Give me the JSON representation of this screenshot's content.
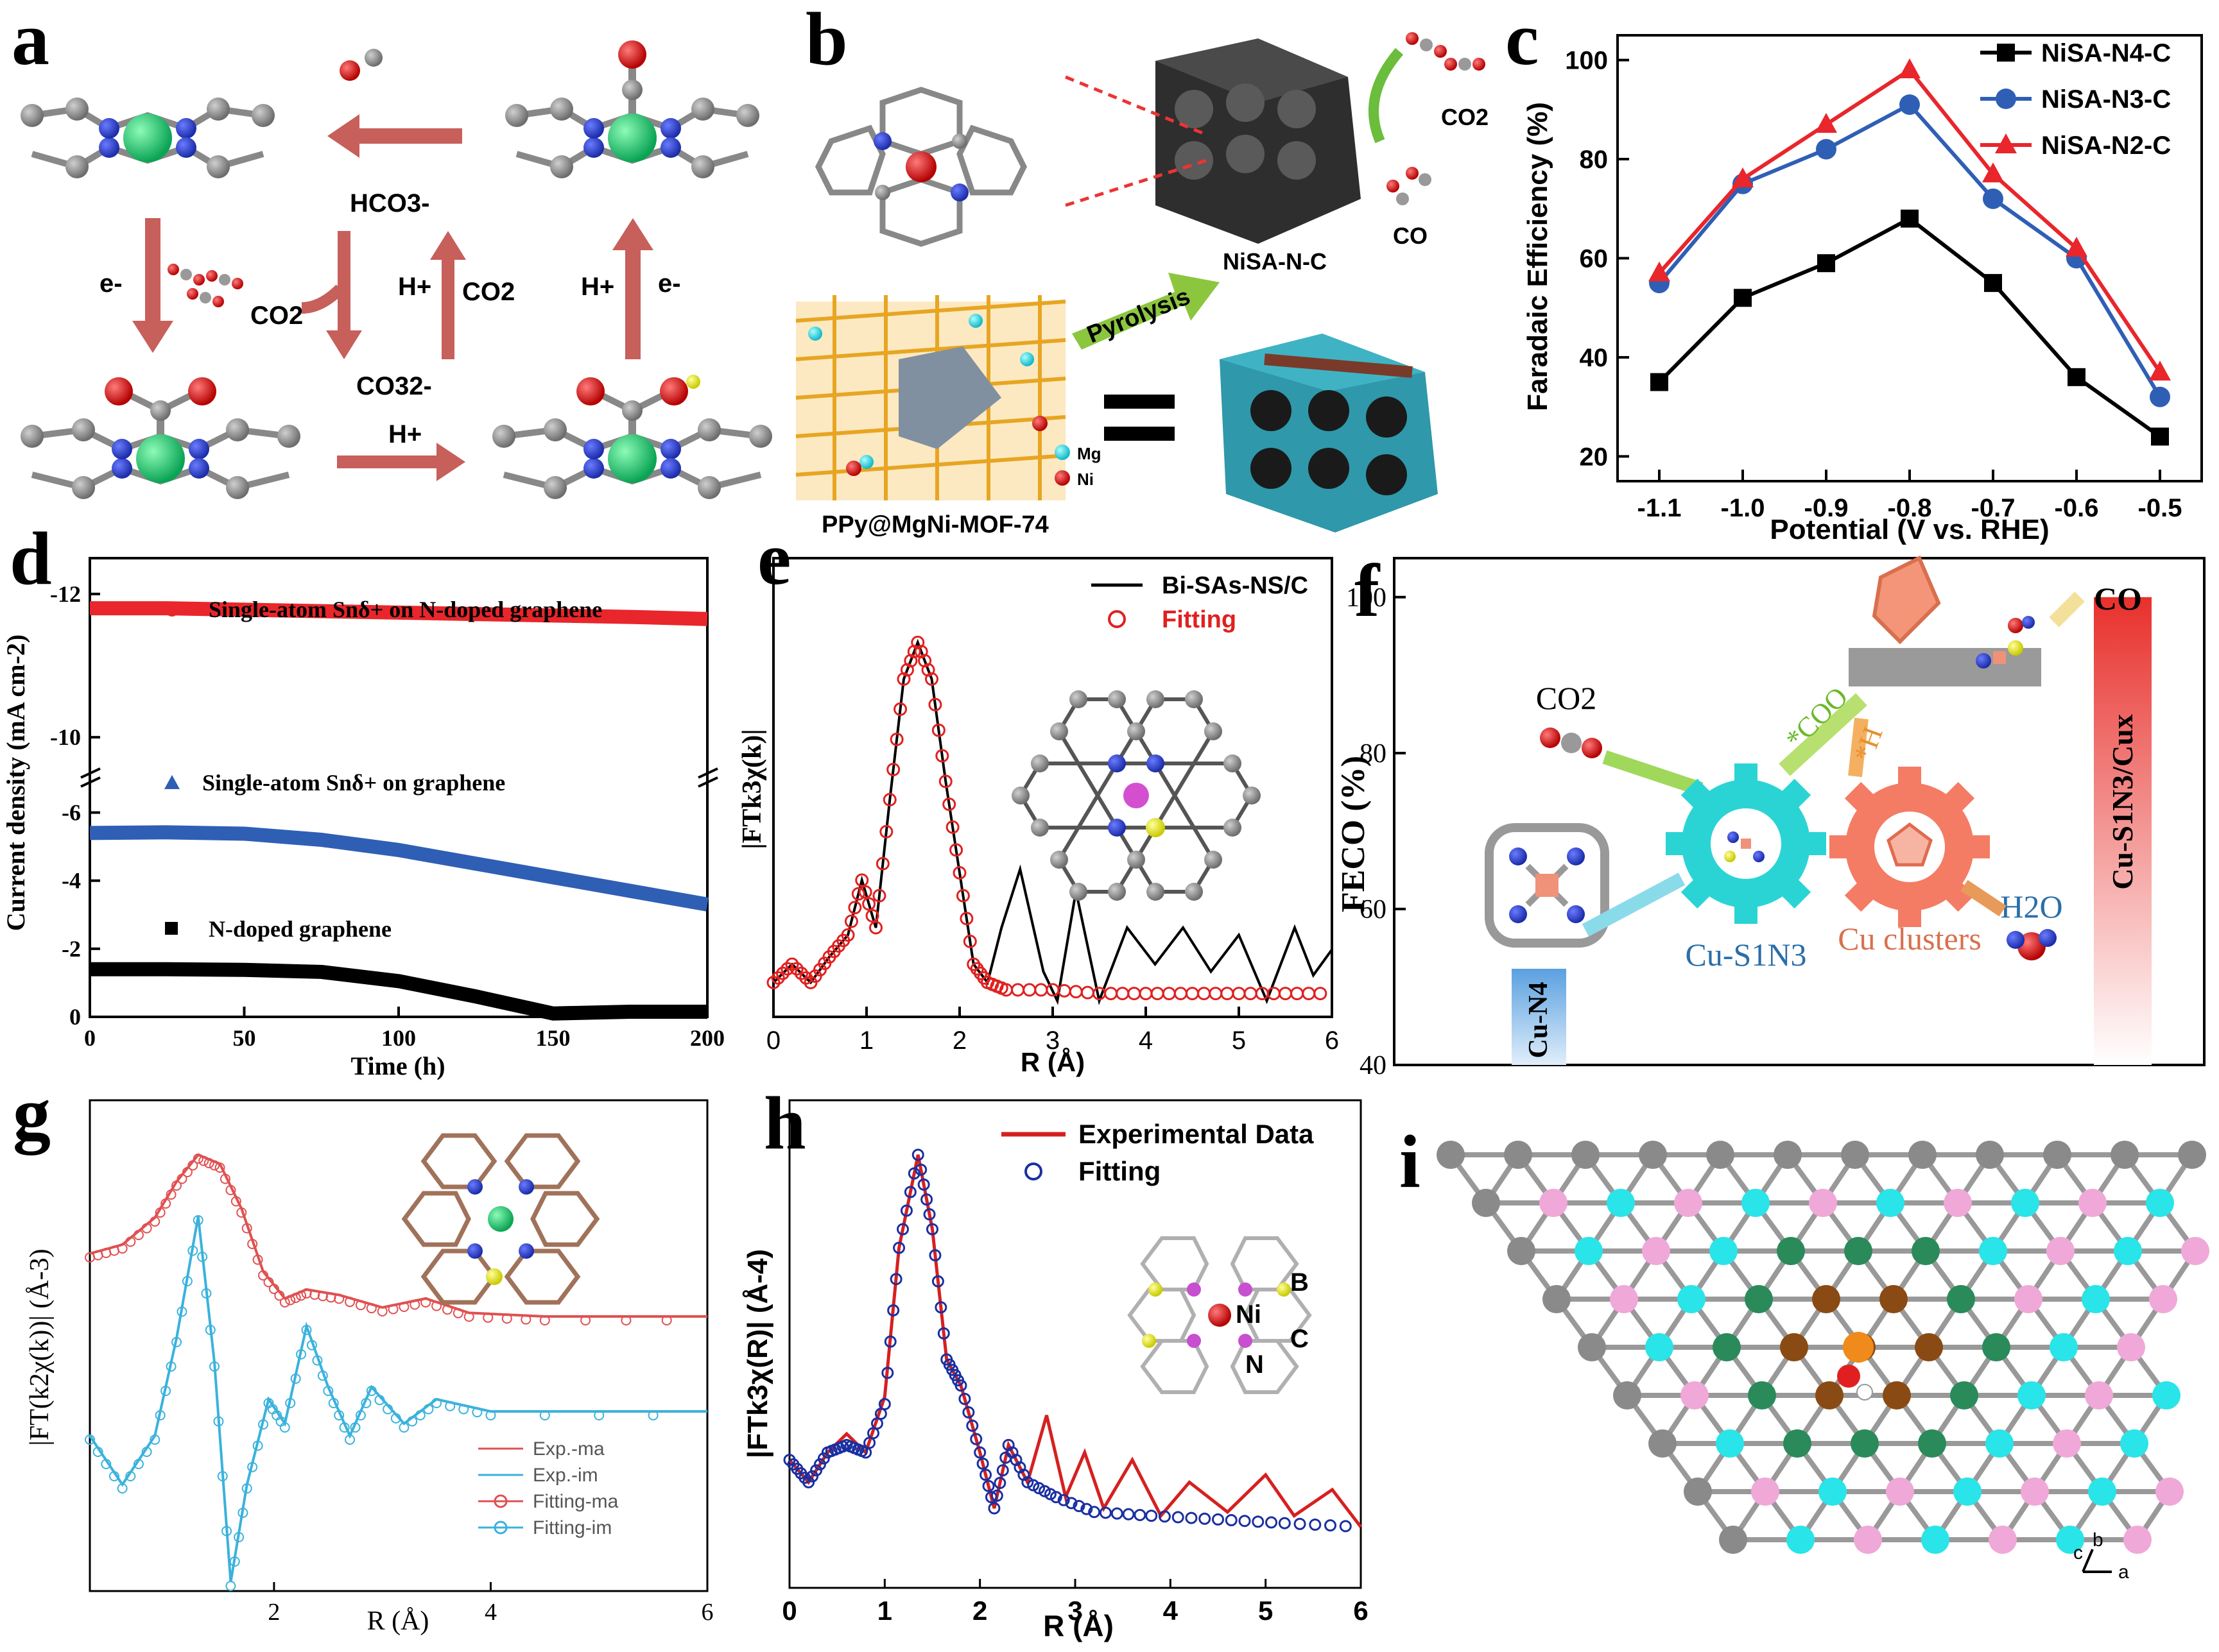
{
  "panel_letters": {
    "a": "a",
    "b": "b",
    "c": "c",
    "d": "d",
    "e": "e",
    "f": "f",
    "g": "g",
    "h": "h",
    "i": "i"
  },
  "colors": {
    "arrow": "#c75f5a",
    "series_black": "#000000",
    "series_blue": "#2f5fb5",
    "series_red": "#e8262b",
    "fit_red": "#e02020",
    "cyan": "#29b7d0",
    "ni_green": "#1fce6d",
    "carbon_gray": "#8a8a8a",
    "nitrogen_blue": "#2040d8"
  },
  "panel_a": {
    "label_hco3": "HCO3-",
    "label_co2_left": "CO2",
    "label_co3": "CO32-",
    "label_e_left": "e-",
    "label_hplus_mid": "H+",
    "label_co2_mid": "CO2",
    "label_hplus_right": "H+",
    "label_e_right": "e-",
    "label_hplus_bottom": "H+"
  },
  "panel_b": {
    "product_co2": "CO2",
    "product_co": "CO",
    "catalyst": "NiSA-N-C",
    "step": "Pyrolysis",
    "precursor": "PPy@MgNi-MOF-74",
    "legend_mg": "Mg",
    "legend_ni": "Ni"
  },
  "chart_data": [
    {
      "id": "c",
      "type": "line",
      "xlabel": "Potential (V vs. RHE)",
      "ylabel": "Faradaic Efficiency (%)",
      "x": [
        -1.1,
        -1.0,
        -0.9,
        -0.8,
        -0.7,
        -0.6,
        -0.5
      ],
      "xticks": [
        "-1.1",
        "-1.0",
        "-0.9",
        "-0.8",
        "-0.7",
        "-0.6",
        "-0.5"
      ],
      "ylim": [
        15,
        105
      ],
      "yticks": [
        20,
        40,
        60,
        80,
        100
      ],
      "series": [
        {
          "name": "NiSA-N4-C",
          "marker": "square",
          "color": "#000000",
          "values": [
            35,
            52,
            59,
            68,
            55,
            36,
            24
          ]
        },
        {
          "name": "NiSA-N3-C",
          "marker": "circle",
          "color": "#2f5fb5",
          "values": [
            55,
            75,
            82,
            91,
            72,
            60,
            32
          ]
        },
        {
          "name": "NiSA-N2-C",
          "marker": "triangle",
          "color": "#e8262b",
          "values": [
            57,
            76,
            87,
            98,
            77,
            62,
            37
          ]
        }
      ]
    },
    {
      "id": "d",
      "type": "line",
      "xlabel": "Time (h)",
      "ylabel": "Current density (mA cm-2)",
      "x": [
        0,
        25,
        50,
        75,
        100,
        125,
        150,
        175,
        200
      ],
      "xticks": [
        "0",
        "50",
        "100",
        "150",
        "200"
      ],
      "yticks": [
        "-12",
        "-10",
        "-6",
        "-4",
        "-2",
        "0"
      ],
      "axis_break": "between -10 and -6",
      "series": [
        {
          "name": "Single-atom Snδ+ on N-doped graphene",
          "color": "#e8262b",
          "values": [
            -11.8,
            -11.8,
            -11.78,
            -11.76,
            -11.74,
            -11.72,
            -11.7,
            -11.68,
            -11.65
          ]
        },
        {
          "name": "Single-atom Snδ+ on graphene",
          "color": "#2f5fb5",
          "values": [
            -5.4,
            -5.42,
            -5.38,
            -5.2,
            -4.9,
            -4.5,
            -4.1,
            -3.7,
            -3.3
          ]
        },
        {
          "name": "N-doped graphene",
          "color": "#000000",
          "values": [
            -1.4,
            -1.4,
            -1.38,
            -1.32,
            -1.05,
            -0.6,
            -0.1,
            -0.15,
            -0.15
          ]
        }
      ]
    },
    {
      "id": "e",
      "type": "line",
      "xlabel": "R (Å)",
      "ylabel": "|FTk3χ(k)|",
      "xlim": [
        0,
        6
      ],
      "xticks": [
        "0",
        "1",
        "2",
        "3",
        "4",
        "5",
        "6"
      ],
      "series": [
        {
          "name": "Bi-SAs-NS/C",
          "color": "#000000",
          "x": [
            0,
            0.2,
            0.4,
            0.6,
            0.8,
            0.95,
            1.1,
            1.25,
            1.4,
            1.55,
            1.7,
            1.85,
            2.0,
            2.15,
            2.3,
            2.45,
            2.65,
            2.9,
            3.05,
            3.25,
            3.5,
            3.8,
            4.1,
            4.4,
            4.7,
            5.0,
            5.3,
            5.6,
            5.8,
            6.0
          ],
          "values": [
            0.05,
            0.1,
            0.05,
            0.12,
            0.18,
            0.33,
            0.2,
            0.55,
            0.88,
            0.98,
            0.88,
            0.6,
            0.35,
            0.1,
            0.05,
            0.2,
            0.36,
            0.08,
            0.0,
            0.3,
            0.0,
            0.2,
            0.1,
            0.2,
            0.08,
            0.18,
            0.0,
            0.2,
            0.07,
            0.14
          ]
        },
        {
          "name": "Fitting",
          "color": "#e02020",
          "marker": "open-circle",
          "x": [
            0,
            0.2,
            0.4,
            0.6,
            0.8,
            0.95,
            1.1,
            1.25,
            1.4,
            1.55,
            1.7,
            1.85,
            2.0,
            2.15,
            2.3,
            2.5,
            3.0,
            3.5,
            4.0,
            4.5,
            5.0,
            5.5,
            6.0
          ],
          "values": [
            0.05,
            0.1,
            0.05,
            0.12,
            0.18,
            0.33,
            0.2,
            0.55,
            0.88,
            0.98,
            0.88,
            0.6,
            0.35,
            0.1,
            0.05,
            0.03,
            0.03,
            0.02,
            0.02,
            0.02,
            0.02,
            0.02,
            0.02
          ]
        }
      ],
      "legend": [
        "Bi-SAs-NS/C",
        "Fitting"
      ]
    },
    {
      "id": "f",
      "type": "bar",
      "ylabel": "FECO (%)",
      "ylim": [
        40,
        105
      ],
      "yticks": [
        "40",
        "60",
        "80",
        "100"
      ],
      "categories": [
        "Cu-S1N3/Cux"
      ],
      "values": [
        100
      ],
      "annotations": [
        "CO2",
        "Cu-N4",
        "Cu-S1N3",
        "Cu clusters",
        "H2O",
        "*COO",
        "*H",
        "CO"
      ]
    },
    {
      "id": "g",
      "type": "line",
      "xlabel": "R (Å)",
      "ylabel": "|FT(k2χ(k))| (Å-3)",
      "xticks": [
        "2",
        "4",
        "6"
      ],
      "series": [
        {
          "name": "Exp.-ma",
          "color": "#e05050"
        },
        {
          "name": "Exp.-im",
          "color": "#3ab2dc"
        },
        {
          "name": "Fitting-ma",
          "color": "#e05050",
          "marker": "open-circle"
        },
        {
          "name": "Fitting-im",
          "color": "#3ab2dc",
          "marker": "open-circle"
        }
      ]
    },
    {
      "id": "h",
      "type": "line",
      "xlabel": "R (Å)",
      "ylabel": "|FTk3χ(R)| (Å-4)",
      "xlim": [
        0,
        6
      ],
      "xticks": [
        "0",
        "1",
        "2",
        "3",
        "4",
        "5",
        "6"
      ],
      "series": [
        {
          "name": "Experimental Data",
          "color": "#d62020"
        },
        {
          "name": "Fitting",
          "color": "#1a2fa0",
          "marker": "open-circle"
        }
      ],
      "inset_labels": [
        "Ni",
        "B",
        "C",
        "N"
      ]
    }
  ],
  "panel_i": {
    "axis_b": "b",
    "axis_c": "c",
    "axis_a": "a"
  }
}
